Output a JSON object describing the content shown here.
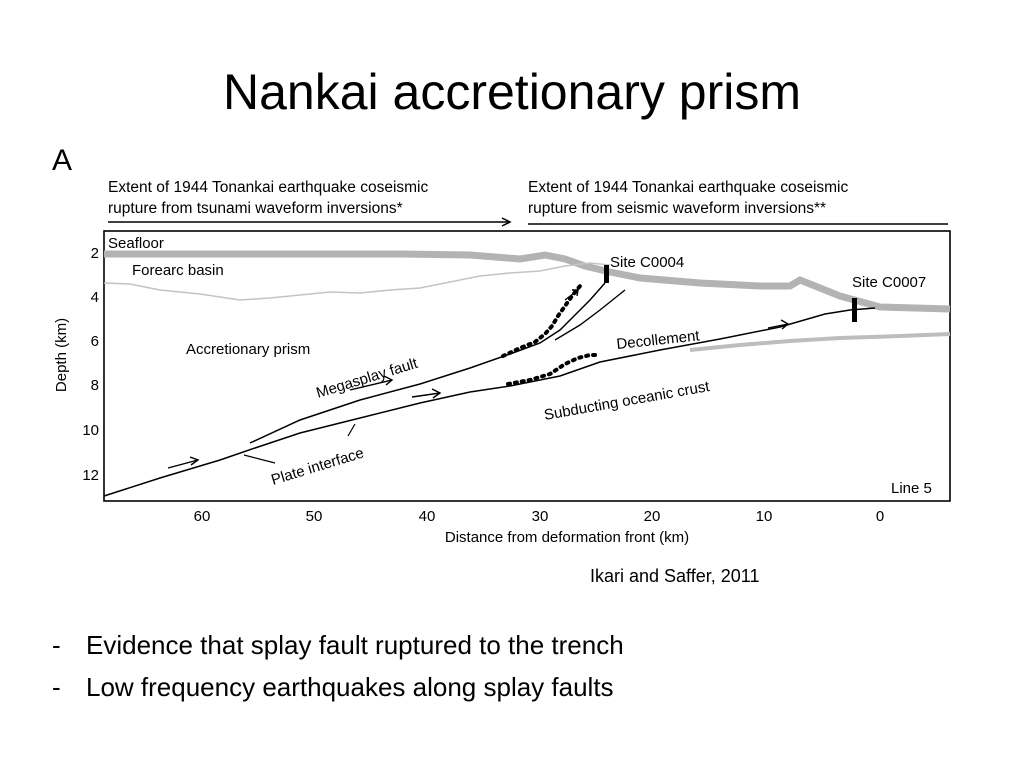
{
  "slide": {
    "title": "Nankai accretionary prism",
    "citation": "Ikari and Saffer, 2011",
    "bullets": [
      {
        "marker": "-",
        "text": "Evidence that splay fault ruptured to the trench"
      },
      {
        "marker": "-",
        "text": "Low frequency earthquakes along splay faults"
      }
    ]
  },
  "figure": {
    "panel_label": "A",
    "extent_tsunami": [
      "Extent of 1944 Tonankai earthquake coseismic",
      "rupture from tsunami waveform inversions*"
    ],
    "extent_seismic": [
      "Extent of 1944 Tonankai earthquake coseismic",
      "rupture from seismic waveform inversions**"
    ],
    "labels": {
      "seafloor": "Seafloor",
      "forearc_basin": "Forearc basin",
      "accretionary_prism": "Accretionary prism",
      "megasplay_fault": "Megasplay fault",
      "decollement": "Decollement",
      "subducting_crust": "Subducting oceanic crust",
      "plate_interface": "Plate interface",
      "site_c0004": "Site C0004",
      "site_c0007": "Site C0007",
      "line": "Line 5"
    },
    "y_axis": {
      "label": "Depth (km)",
      "ticks": [
        "2",
        "4",
        "6",
        "8",
        "10",
        "12"
      ]
    },
    "x_axis": {
      "label": "Distance from deformation front (km)",
      "ticks": [
        "60",
        "50",
        "40",
        "30",
        "20",
        "10",
        "0"
      ]
    }
  }
}
